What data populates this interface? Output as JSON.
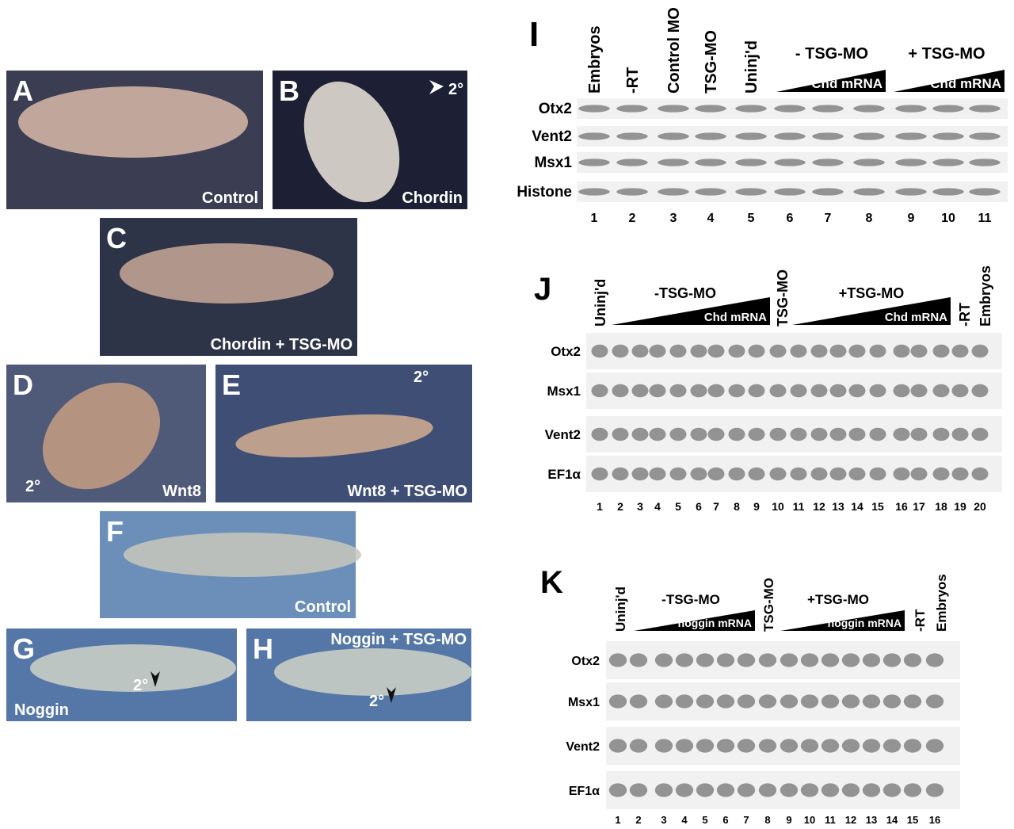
{
  "panels": [
    {
      "letter": "A",
      "label": "Control"
    },
    {
      "letter": "B",
      "label": "Chordin",
      "annotation": "2°"
    },
    {
      "letter": "C",
      "label": "Chordin + TSG-MO"
    },
    {
      "letter": "D",
      "label": "Wnt8",
      "annotation": "2°"
    },
    {
      "letter": "E",
      "label": "Wnt8 + TSG-MO",
      "annotation": "2°"
    },
    {
      "letter": "F",
      "label": "Control"
    },
    {
      "letter": "G",
      "label": "Noggin",
      "annotation": "2°"
    },
    {
      "letter": "H",
      "label": "Noggin + TSG-MO",
      "annotation": "2°"
    }
  ],
  "gels": [
    {
      "letter": "I",
      "columns": [
        "Embryos",
        "-RT",
        "Control MO",
        "TSG-MO",
        "Uninj'd"
      ],
      "groups": [
        {
          "label": "- TSG-MO",
          "ramp": "Chd mRNA"
        },
        {
          "label": "+ TSG-MO",
          "ramp": "Chd mRNA"
        }
      ],
      "rows": [
        "Otx2",
        "Vent2",
        "Msx1",
        "Histone"
      ],
      "lanes": [
        1,
        2,
        3,
        4,
        5,
        6,
        7,
        8,
        9,
        10,
        11
      ]
    },
    {
      "letter": "J",
      "columns": [
        "Uninj'd",
        "TSG-MO",
        "-RT",
        "Embryos"
      ],
      "groups": [
        {
          "label": "-TSG-MO",
          "ramp": "Chd mRNA"
        },
        {
          "label": "+TSG-MO",
          "ramp": "Chd mRNA"
        }
      ],
      "rows": [
        "Otx2",
        "Msx1",
        "Vent2",
        "EF1α"
      ],
      "lanes": [
        1,
        2,
        3,
        4,
        5,
        6,
        7,
        8,
        9,
        10,
        11,
        12,
        13,
        14,
        15,
        16,
        17,
        18,
        19,
        20
      ]
    },
    {
      "letter": "K",
      "columns": [
        "Uninj'd",
        "TSG-MO",
        "-RT",
        "Embryos"
      ],
      "groups": [
        {
          "label": "-TSG-MO",
          "ramp": "noggin mRNA"
        },
        {
          "label": "+TSG-MO",
          "ramp": "noggin mRNA"
        }
      ],
      "rows": [
        "Otx2",
        "Msx1",
        "Vent2",
        "EF1α"
      ],
      "lanes": [
        1,
        2,
        3,
        4,
        5,
        6,
        7,
        8,
        9,
        10,
        11,
        12,
        13,
        14,
        15,
        16
      ]
    }
  ]
}
